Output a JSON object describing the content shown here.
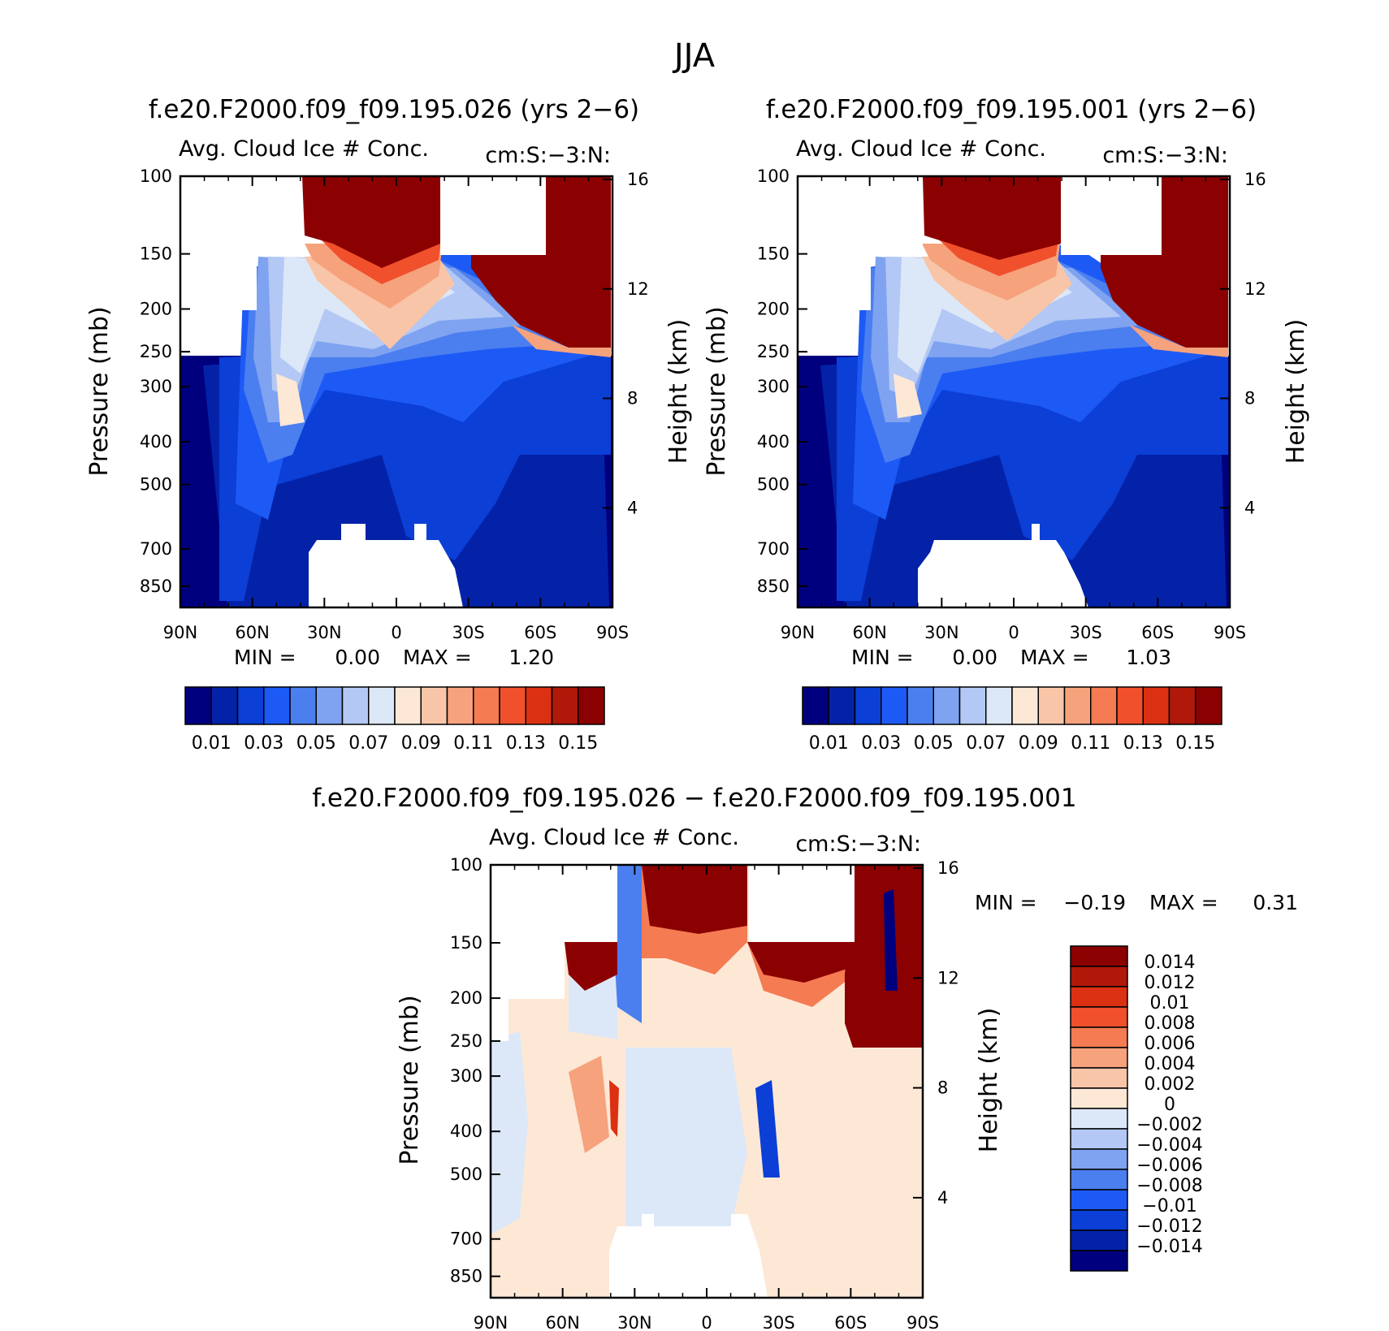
{
  "figure_title": "JJA",
  "colors": {
    "seq": [
      "#00007f",
      "#0422a8",
      "#0b3fd6",
      "#1d5af5",
      "#4b7ff0",
      "#7fa3f0",
      "#b3c8f5",
      "#dce8f8",
      "#fde8d6",
      "#f9c5a8",
      "#f6a27d",
      "#f47b52",
      "#f0502c",
      "#dc3012",
      "#b0190a",
      "#8b0000"
    ],
    "diff": [
      "#00007f",
      "#0422a8",
      "#0b3fd6",
      "#1d5af5",
      "#4b7ff0",
      "#7fa3f0",
      "#b3c8f5",
      "#dce8f8",
      "#fde8d6",
      "#f9c5a8",
      "#f6a27d",
      "#f47b52",
      "#f0502c",
      "#dc3012",
      "#b0190a",
      "#8b0000"
    ]
  },
  "chart_data": [
    {
      "type": "heatmap",
      "panel": "top-left",
      "title": "f.e20.F2000.f09_f09.195.026 (yrs 2-6)",
      "subtitle_left": "Avg. Cloud Ice # Conc.",
      "subtitle_right": "cm:S:-3:N:",
      "ylabel": "Pressure (mb)",
      "y2label": "Height (km)",
      "xticks": [
        "90N",
        "60N",
        "30N",
        "0",
        "30S",
        "60S",
        "90S"
      ],
      "yticks": [
        "100",
        "150",
        "200",
        "250",
        "300",
        "400",
        "500",
        "700",
        "850"
      ],
      "y2ticks": [
        "16",
        "12",
        "8",
        "4"
      ],
      "min_text": "MIN =",
      "min_value": "0.00",
      "max_text": "MAX =",
      "max_value": "1.20",
      "colorbar_labels": [
        "0.01",
        "0.03",
        "0.05",
        "0.07",
        "0.09",
        "0.11",
        "0.13",
        "0.15"
      ]
    },
    {
      "type": "heatmap",
      "panel": "top-right",
      "title": "f.e20.F2000.f09_f09.195.001 (yrs 2-6)",
      "subtitle_left": "Avg. Cloud Ice # Conc.",
      "subtitle_right": "cm:S:-3:N:",
      "ylabel": "Pressure (mb)",
      "y2label": "Height (km)",
      "xticks": [
        "90N",
        "60N",
        "30N",
        "0",
        "30S",
        "60S",
        "90S"
      ],
      "yticks": [
        "100",
        "150",
        "200",
        "250",
        "300",
        "400",
        "500",
        "700",
        "850"
      ],
      "y2ticks": [
        "16",
        "12",
        "8",
        "4"
      ],
      "min_text": "MIN =",
      "min_value": "0.00",
      "max_text": "MAX =",
      "max_value": "1.03",
      "colorbar_labels": [
        "0.01",
        "0.03",
        "0.05",
        "0.07",
        "0.09",
        "0.11",
        "0.13",
        "0.15"
      ]
    },
    {
      "type": "heatmap",
      "panel": "bottom",
      "title": "f.e20.F2000.f09_f09.195.026 - f.e20.F2000.f09_f09.195.001",
      "subtitle_left": "Avg. Cloud Ice # Conc.",
      "subtitle_right": "cm:S:-3:N:",
      "ylabel": "Pressure (mb)",
      "y2label": "Height (km)",
      "xticks": [
        "90N",
        "60N",
        "30N",
        "0",
        "30S",
        "60S",
        "90S"
      ],
      "yticks": [
        "100",
        "150",
        "200",
        "250",
        "300",
        "400",
        "500",
        "700",
        "850"
      ],
      "y2ticks": [
        "16",
        "12",
        "8",
        "4"
      ],
      "min_text": "MIN =",
      "min_value": "-0.19",
      "max_text": "MAX =",
      "max_value": "0.31",
      "colorbar_labels": [
        "0.014",
        "0.012",
        "0.01",
        "0.008",
        "0.006",
        "0.004",
        "0.002",
        "0",
        "-0.002",
        "-0.004",
        "-0.006",
        "-0.008",
        "-0.01",
        "-0.012",
        "-0.014"
      ]
    }
  ]
}
